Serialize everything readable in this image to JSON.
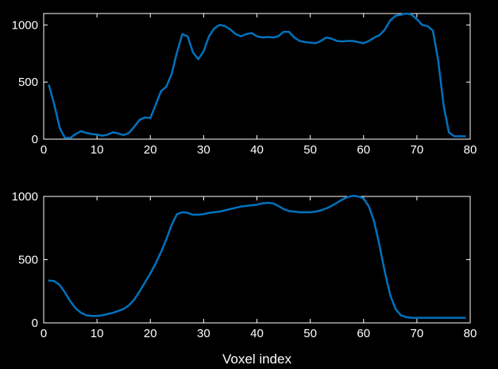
{
  "chart_data": [
    {
      "type": "line",
      "xlim": [
        0,
        80
      ],
      "ylim": [
        0,
        1100
      ],
      "xticks": [
        0,
        10,
        20,
        30,
        40,
        50,
        60,
        70,
        80
      ],
      "yticks": [
        0,
        500,
        1000
      ],
      "xlabel": "",
      "ylabel": "",
      "grid": false,
      "series": [
        {
          "color": "#0072BD",
          "x": [
            1,
            2,
            3,
            4,
            5,
            6,
            7,
            8,
            9,
            10,
            11,
            12,
            13,
            14,
            15,
            16,
            17,
            18,
            19,
            20,
            21,
            22,
            23,
            24,
            25,
            26,
            27,
            28,
            29,
            30,
            31,
            32,
            33,
            34,
            35,
            36,
            37,
            38,
            39,
            40,
            41,
            42,
            43,
            44,
            45,
            46,
            47,
            48,
            49,
            50,
            51,
            52,
            53,
            54,
            55,
            56,
            57,
            58,
            59,
            60,
            61,
            62,
            63,
            64,
            65,
            66,
            67,
            68,
            69,
            70,
            71,
            72,
            73,
            74,
            75,
            76,
            77,
            78,
            79
          ],
          "y": [
            470,
            300,
            100,
            10,
            10,
            45,
            70,
            55,
            45,
            40,
            30,
            40,
            60,
            50,
            35,
            55,
            110,
            170,
            190,
            185,
            300,
            420,
            460,
            570,
            760,
            920,
            900,
            760,
            700,
            770,
            900,
            970,
            1000,
            990,
            960,
            920,
            900,
            920,
            930,
            900,
            890,
            895,
            890,
            900,
            940,
            940,
            890,
            860,
            850,
            845,
            840,
            860,
            890,
            880,
            860,
            855,
            860,
            860,
            850,
            840,
            860,
            890,
            910,
            960,
            1040,
            1080,
            1090,
            1100,
            1090,
            1050,
            1000,
            990,
            950,
            690,
            300,
            60,
            25,
            25,
            25
          ]
        }
      ]
    },
    {
      "type": "line",
      "xlim": [
        0,
        80
      ],
      "ylim": [
        0,
        1000
      ],
      "xticks": [
        0,
        10,
        20,
        30,
        40,
        50,
        60,
        70,
        80
      ],
      "yticks": [
        0,
        500,
        1000
      ],
      "xlabel": "Voxel index",
      "ylabel": "",
      "grid": false,
      "series": [
        {
          "color": "#0072BD",
          "x": [
            1,
            2,
            3,
            4,
            5,
            6,
            7,
            8,
            9,
            10,
            11,
            12,
            13,
            14,
            15,
            16,
            17,
            18,
            19,
            20,
            21,
            22,
            23,
            24,
            25,
            26,
            27,
            28,
            29,
            30,
            31,
            32,
            33,
            34,
            35,
            36,
            37,
            38,
            39,
            40,
            41,
            42,
            43,
            44,
            45,
            46,
            47,
            48,
            49,
            50,
            51,
            52,
            53,
            54,
            55,
            56,
            57,
            58,
            59,
            60,
            61,
            62,
            63,
            64,
            65,
            66,
            67,
            68,
            69,
            70,
            71,
            72,
            73,
            74,
            75,
            76,
            77,
            78,
            79
          ],
          "y": [
            335,
            330,
            300,
            240,
            170,
            115,
            80,
            60,
            55,
            55,
            60,
            70,
            80,
            95,
            110,
            140,
            185,
            250,
            320,
            390,
            470,
            560,
            660,
            775,
            860,
            875,
            870,
            855,
            855,
            860,
            870,
            875,
            880,
            890,
            900,
            910,
            920,
            925,
            930,
            935,
            945,
            950,
            945,
            925,
            900,
            885,
            880,
            875,
            875,
            875,
            880,
            890,
            905,
            925,
            950,
            975,
            995,
            1005,
            1000,
            985,
            920,
            800,
            610,
            400,
            220,
            110,
            60,
            45,
            40,
            40,
            40,
            40,
            40,
            40,
            40,
            40,
            40,
            40,
            40
          ]
        }
      ]
    }
  ]
}
